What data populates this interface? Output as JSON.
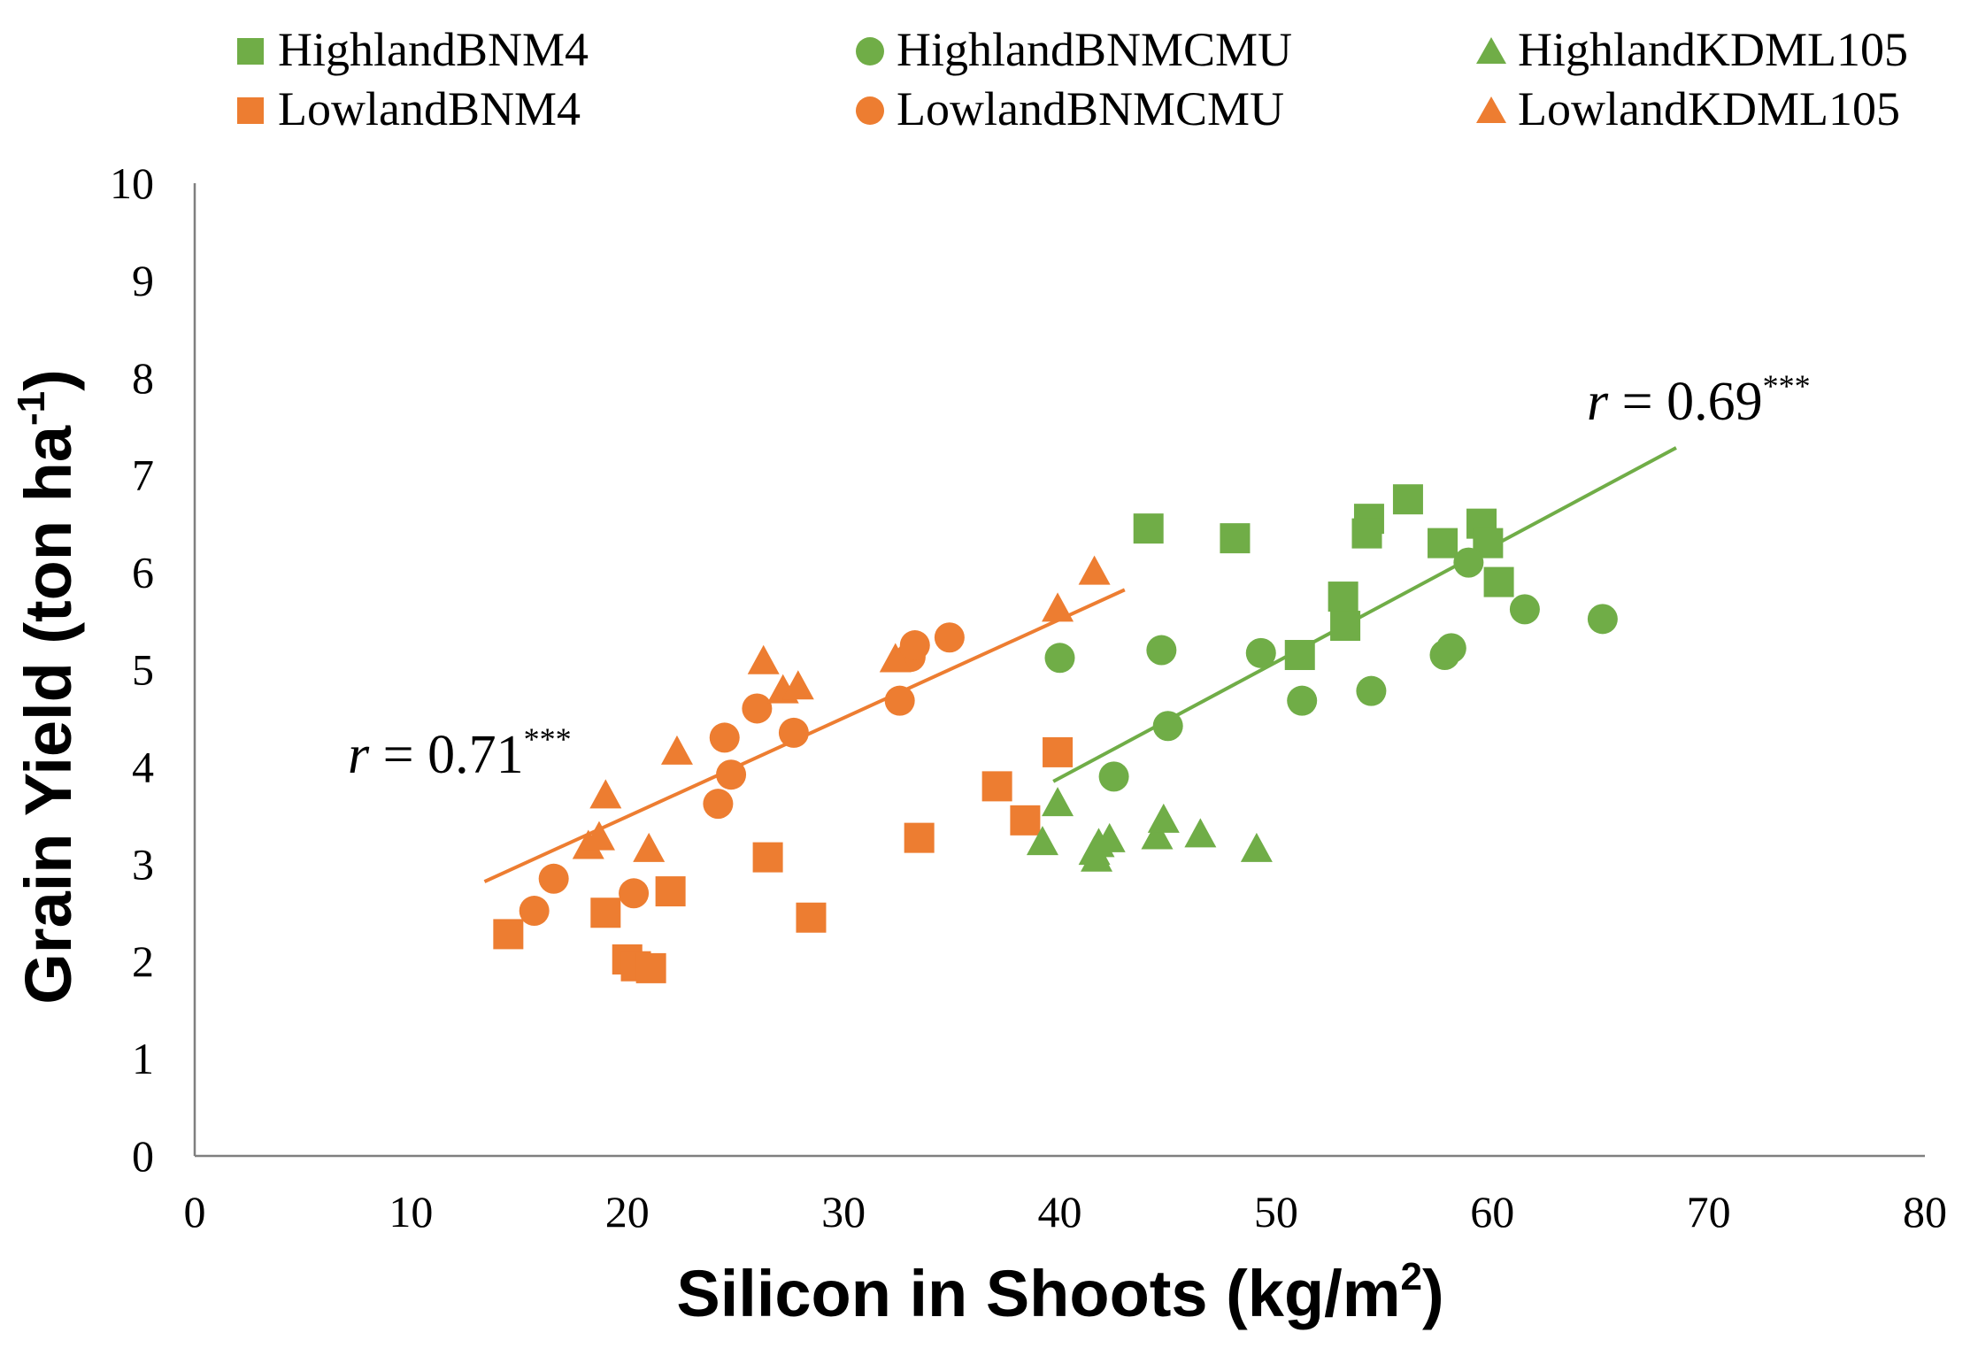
{
  "chart_data": {
    "type": "scatter",
    "xlabel": "Silicon in Shoots (kg/m",
    "xlabel_sup": "2",
    "xlabel_end": ")",
    "ylabel": "Grain Yield (ton ha",
    "ylabel_sup": "-1",
    "ylabel_end": ")",
    "xlim": [
      0,
      80
    ],
    "ylim": [
      0,
      10
    ],
    "xticks": [
      0,
      10,
      20,
      30,
      40,
      50,
      60,
      70,
      80
    ],
    "yticks": [
      0,
      1,
      2,
      3,
      4,
      5,
      6,
      7,
      8,
      9,
      10
    ],
    "grid": false,
    "legend_position": "top",
    "colors": {
      "highland": "#70ad47",
      "lowland": "#ed7d31"
    },
    "series": [
      {
        "name": "HighlandBNM4",
        "marker": "square",
        "color": "#70ad47",
        "points": [
          [
            44.1,
            6.45
          ],
          [
            48.1,
            6.35
          ],
          [
            54.3,
            6.55
          ],
          [
            54.2,
            6.4
          ],
          [
            56.1,
            6.75
          ],
          [
            57.7,
            6.3
          ],
          [
            59.5,
            6.5
          ],
          [
            59.8,
            6.3
          ],
          [
            60.3,
            5.9
          ],
          [
            53.1,
            5.75
          ],
          [
            53.2,
            5.45
          ],
          [
            51.1,
            5.15
          ]
        ]
      },
      {
        "name": "LowlandBNM4",
        "marker": "square",
        "color": "#ed7d31",
        "points": [
          [
            14.5,
            2.28
          ],
          [
            19.0,
            2.5
          ],
          [
            20.0,
            2.02
          ],
          [
            20.4,
            1.95
          ],
          [
            21.1,
            1.93
          ],
          [
            22.0,
            2.72
          ],
          [
            26.5,
            3.07
          ],
          [
            28.5,
            2.45
          ],
          [
            33.5,
            3.27
          ],
          [
            37.1,
            3.8
          ],
          [
            38.4,
            3.45
          ],
          [
            39.9,
            4.15
          ]
        ]
      },
      {
        "name": "HighlandBNMCMU",
        "marker": "circle",
        "color": "#70ad47",
        "points": [
          [
            40.0,
            5.12
          ],
          [
            44.7,
            5.2
          ],
          [
            49.3,
            5.17
          ],
          [
            45.0,
            4.42
          ],
          [
            42.5,
            3.9
          ],
          [
            51.2,
            4.68
          ],
          [
            54.4,
            4.78
          ],
          [
            57.8,
            5.15
          ],
          [
            58.1,
            5.22
          ],
          [
            58.9,
            6.1
          ],
          [
            61.5,
            5.62
          ],
          [
            65.1,
            5.52
          ]
        ]
      },
      {
        "name": "LowlandBNMCMU",
        "marker": "circle",
        "color": "#ed7d31",
        "points": [
          [
            15.7,
            2.52
          ],
          [
            16.6,
            2.85
          ],
          [
            20.3,
            2.7
          ],
          [
            24.2,
            3.62
          ],
          [
            24.5,
            4.3
          ],
          [
            24.8,
            3.92
          ],
          [
            26.0,
            4.6
          ],
          [
            27.7,
            4.35
          ],
          [
            32.6,
            4.68
          ],
          [
            33.1,
            5.13
          ],
          [
            33.3,
            5.25
          ],
          [
            34.9,
            5.33
          ]
        ]
      },
      {
        "name": "HighlandKDML105",
        "marker": "triangle",
        "color": "#70ad47",
        "points": [
          [
            39.2,
            3.22
          ],
          [
            39.9,
            3.62
          ],
          [
            41.6,
            3.12
          ],
          [
            41.8,
            3.2
          ],
          [
            42.3,
            3.25
          ],
          [
            44.5,
            3.28
          ],
          [
            44.8,
            3.45
          ],
          [
            46.5,
            3.3
          ],
          [
            49.1,
            3.15
          ],
          [
            41.7,
            3.05
          ]
        ]
      },
      {
        "name": "LowlandKDML105",
        "marker": "triangle",
        "color": "#ed7d31",
        "points": [
          [
            18.2,
            3.18
          ],
          [
            18.7,
            3.27
          ],
          [
            19.0,
            3.7
          ],
          [
            21.0,
            3.15
          ],
          [
            22.3,
            4.15
          ],
          [
            26.3,
            5.08
          ],
          [
            27.2,
            4.78
          ],
          [
            27.9,
            4.82
          ],
          [
            32.4,
            5.1
          ],
          [
            39.9,
            5.62
          ],
          [
            41.6,
            6.0
          ]
        ]
      }
    ],
    "trendlines": [
      {
        "series": "lowland",
        "color": "#ed7d31",
        "x": [
          13.4,
          43.0
        ],
        "y": [
          2.82,
          5.82
        ],
        "label": "r = 0.71",
        "label_r": "r",
        "label_value": " = 0.71",
        "label_sig": "***"
      },
      {
        "series": "highland",
        "color": "#70ad47",
        "x": [
          39.7,
          68.5
        ],
        "y": [
          3.85,
          7.28
        ],
        "label": "r = 0.69",
        "label_r": "r",
        "label_value": " = 0.69",
        "label_sig": "***"
      }
    ]
  }
}
